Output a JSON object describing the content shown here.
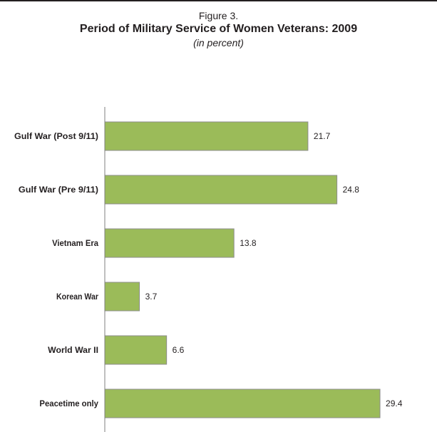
{
  "figure": {
    "label": "Figure 3.",
    "title": "Period of Military Service of Women Veterans: 2009",
    "subtitle": "(in percent)"
  },
  "chart_data": {
    "type": "bar",
    "orientation": "horizontal",
    "categories": [
      "Gulf War (Post 9/11)",
      "Gulf War (Pre 9/11)",
      "Vietnam Era",
      "Korean War",
      "World War II",
      "Peacetime only"
    ],
    "values": [
      21.7,
      24.8,
      13.8,
      3.7,
      6.6,
      29.4
    ],
    "xlim": [
      0,
      30
    ],
    "grid": false,
    "legend": "none",
    "colors": {
      "bar_fill": "#9bbb59",
      "bar_stroke": "#8c8c8c",
      "axis": "#7f7f7f"
    }
  }
}
